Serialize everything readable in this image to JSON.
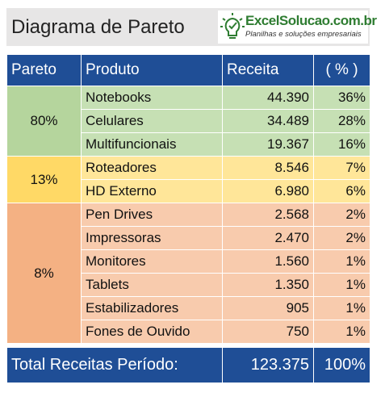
{
  "header": {
    "title": "Diagrama de Pareto",
    "logo": {
      "name": "ExcelSolucao.com.br",
      "tagline": "Planilhas e soluções empresariais"
    }
  },
  "table": {
    "columns": [
      "Pareto",
      "Produto",
      "Receita",
      "( % )"
    ],
    "groups": [
      {
        "pareto": "80%",
        "rows": [
          [
            "Notebooks",
            "44.390",
            "36%"
          ],
          [
            "Celulares",
            "34.489",
            "28%"
          ],
          [
            "Multifuncionais",
            "19.367",
            "16%"
          ]
        ]
      },
      {
        "pareto": "13%",
        "rows": [
          [
            "Roteadores",
            "8.546",
            "7%"
          ],
          [
            "HD Externo",
            "6.980",
            "6%"
          ]
        ]
      },
      {
        "pareto": "8%",
        "rows": [
          [
            "Pen Drives",
            "2.568",
            "2%"
          ],
          [
            "Impressoras",
            "2.470",
            "2%"
          ],
          [
            "Monitores",
            "1.560",
            "1%"
          ],
          [
            "Tablets",
            "1.350",
            "1%"
          ],
          [
            "Estabilizadores",
            "905",
            "1%"
          ],
          [
            "Fones de Ouvido",
            "750",
            "1%"
          ]
        ]
      }
    ],
    "total": {
      "label": "Total Receitas Período:",
      "revenue": "123.375",
      "percent": "100%"
    }
  }
}
